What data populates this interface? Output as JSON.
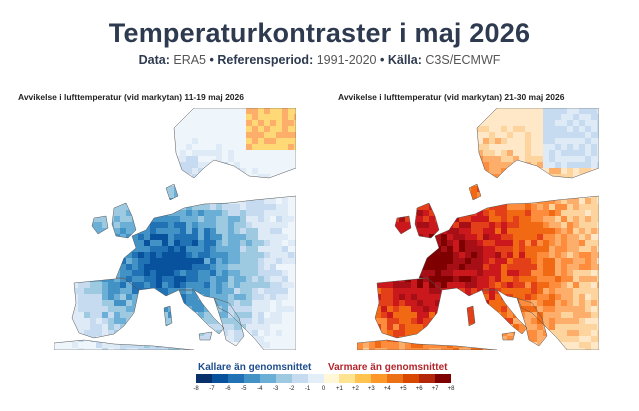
{
  "header": {
    "title": "Temperaturkontraster i maj 2026",
    "data_label": "Data:",
    "data_value": "ERA5",
    "ref_label": "Referensperiod:",
    "ref_value": "1991-2020",
    "source_label": "Källa:",
    "source_value": "C3S/ECMWF",
    "separator": "•"
  },
  "maps": [
    {
      "title": "Avvikelse i lufttemperatur (vid markytan) 11-19 maj 2026",
      "anomaly": "cold"
    },
    {
      "title": "Avvikelse i lufttemperatur (vid markytan) 21-30 maj 2026",
      "anomaly": "warm"
    }
  ],
  "legend": {
    "cold_label": "Kallare än genomsnittet",
    "warm_label": "Varmare än genomsnittet",
    "cold_color": "#1f4e8c",
    "warm_color": "#b3262b",
    "ticks": [
      "-8",
      "-7",
      "-6",
      "-5",
      "-4",
      "-3",
      "-2",
      "-1",
      "0",
      "+1",
      "+2",
      "+3",
      "+4",
      "+5",
      "+6",
      "+7",
      "+8"
    ],
    "colors": [
      "#08306b",
      "#08519c",
      "#2171b5",
      "#4292c6",
      "#6baed6",
      "#9ecae1",
      "#c6dbef",
      "#e4eef8",
      "#fff7d6",
      "#fee391",
      "#fec44f",
      "#fe9929",
      "#ec7014",
      "#d94801",
      "#b3260a",
      "#7f0000"
    ]
  }
}
